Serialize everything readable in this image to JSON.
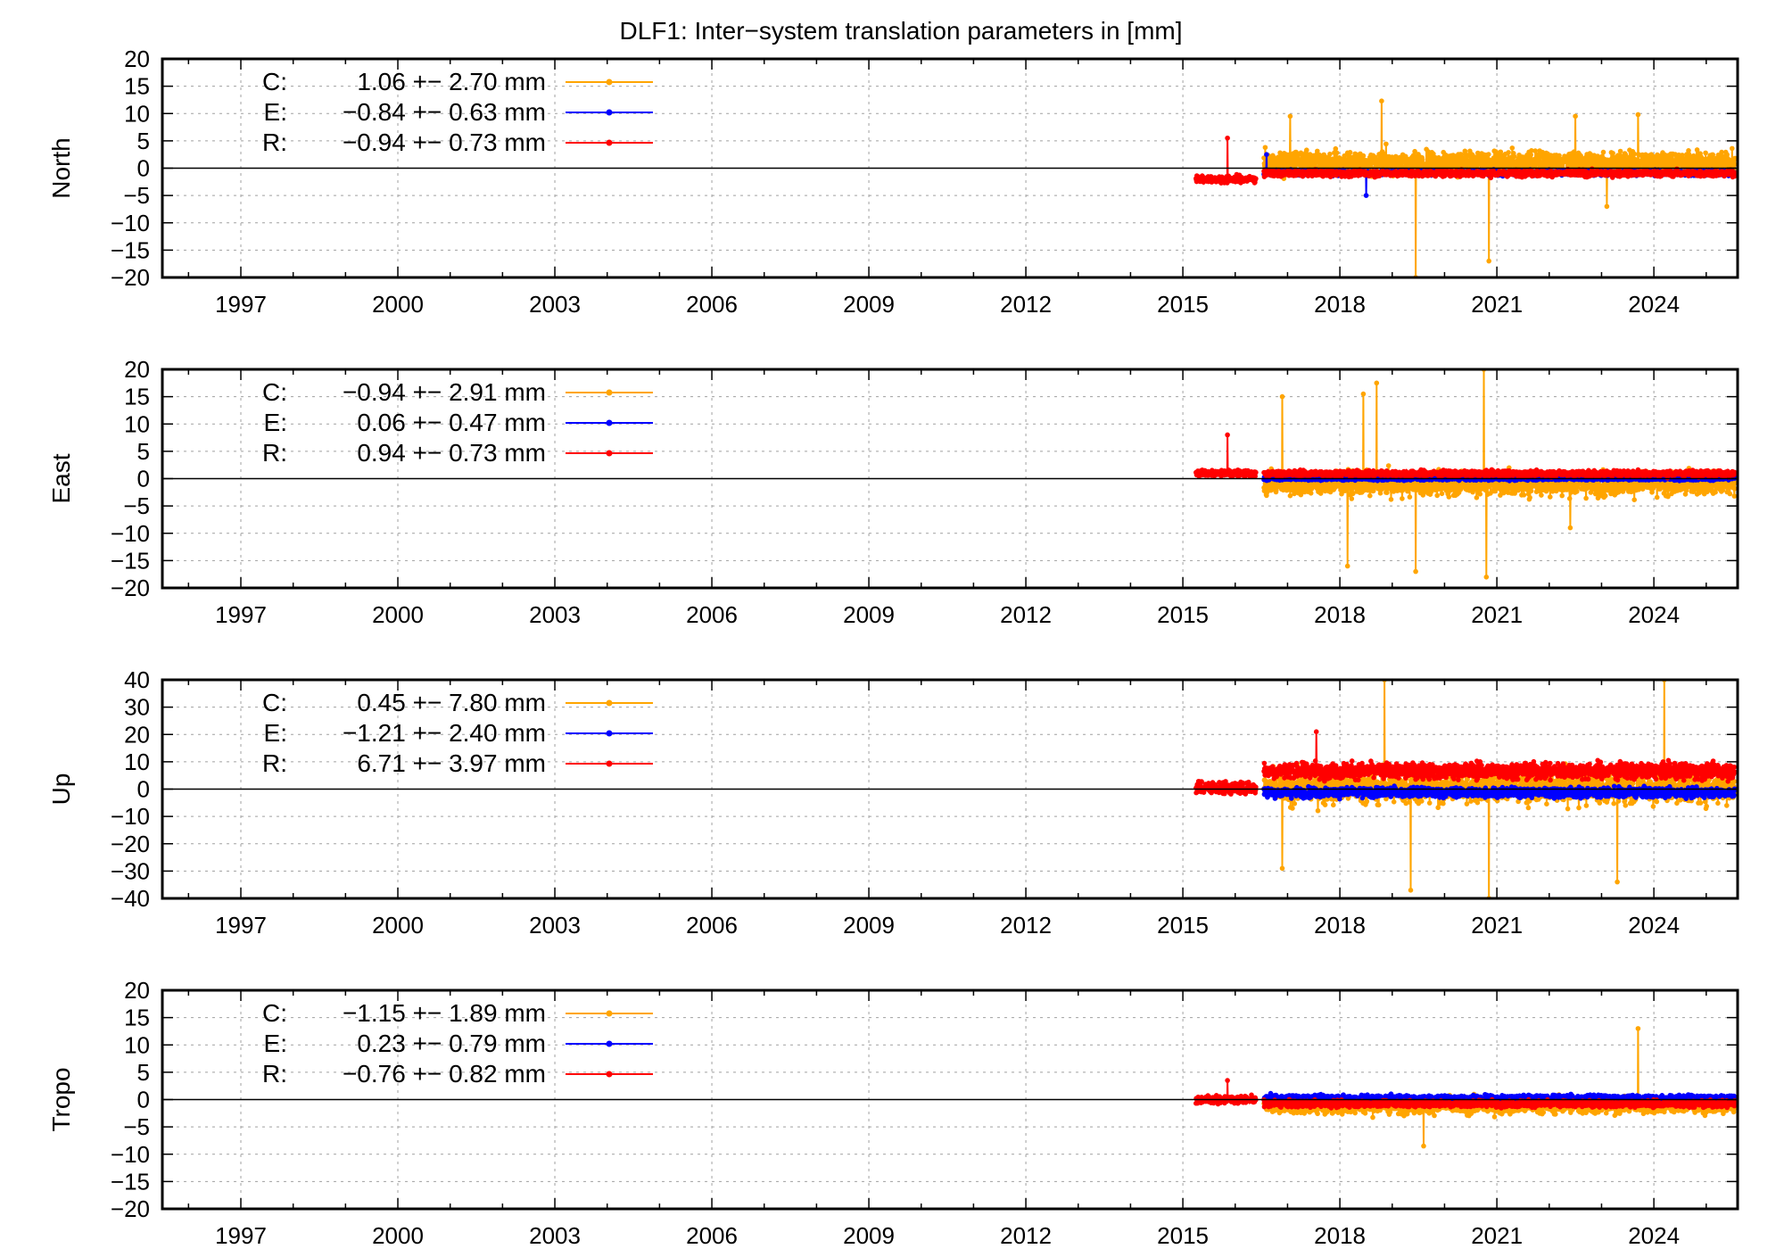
{
  "chart_data": {
    "type": "line",
    "title": "DLF1: Inter−system translation parameters in [mm]",
    "xlim": [
      1995.5,
      2025.6
    ],
    "xticks": [
      1997,
      2000,
      2003,
      2006,
      2009,
      2012,
      2015,
      2018,
      2021,
      2024
    ],
    "xtick_labels": [
      "1997",
      "2000",
      "2003",
      "2006",
      "2009",
      "2012",
      "2015",
      "2018",
      "2021",
      "2024"
    ],
    "grid": true,
    "series_colors": {
      "C": "#ffa500",
      "E": "#0000ff",
      "R": "#ff0000"
    },
    "panels": [
      {
        "ylabel": "North",
        "ylim": [
          -20,
          20
        ],
        "yticks": [
          -20,
          -15,
          -10,
          -5,
          0,
          5,
          10,
          15,
          20
        ],
        "ytick_labels": [
          "−20",
          "−15",
          "−10",
          "−5",
          "0",
          "5",
          "10",
          "15",
          "20"
        ],
        "legend": [
          {
            "sys": "C:",
            "stat": "1.06 +− 2.70 mm"
          },
          {
            "sys": "E:",
            "stat": "−0.84 +− 0.63 mm"
          },
          {
            "sys": "R:",
            "stat": "−0.94 +− 0.73 mm"
          }
        ],
        "series": [
          {
            "name": "C",
            "start": 2016.55,
            "end": 2025.55,
            "mean": 1.06,
            "std": 2.7,
            "spikes": [
              [
                2017.05,
                9.5
              ],
              [
                2018.8,
                12.3
              ],
              [
                2019.45,
                -21
              ],
              [
                2020.85,
                -17
              ],
              [
                2022.5,
                9.5
              ],
              [
                2023.1,
                -7
              ],
              [
                2023.7,
                9.8
              ]
            ]
          },
          {
            "name": "E",
            "start": 2016.55,
            "end": 2025.55,
            "mean": -0.84,
            "std": 0.63,
            "spikes": [
              [
                2016.6,
                2.5
              ],
              [
                2018.5,
                -5
              ]
            ]
          },
          {
            "name": "R",
            "start": 2015.25,
            "end": 2025.55,
            "mean": -0.94,
            "std": 0.73,
            "seg": [
              2015.25,
              2016.4,
              -2.0,
              0.9
            ],
            "spikes": [
              [
                2015.85,
                5.5
              ]
            ]
          }
        ]
      },
      {
        "ylabel": "East",
        "ylim": [
          -20,
          20
        ],
        "yticks": [
          -20,
          -15,
          -10,
          -5,
          0,
          5,
          10,
          15,
          20
        ],
        "ytick_labels": [
          "−20",
          "−15",
          "−10",
          "−5",
          "0",
          "5",
          "10",
          "15",
          "20"
        ],
        "legend": [
          {
            "sys": "C:",
            "stat": "−0.94 +− 2.91 mm"
          },
          {
            "sys": "E:",
            "stat": "0.06 +− 0.47 mm"
          },
          {
            "sys": "R:",
            "stat": "0.94 +− 0.73 mm"
          }
        ],
        "series": [
          {
            "name": "C",
            "start": 2016.55,
            "end": 2025.55,
            "mean": -0.94,
            "std": 2.91,
            "spikes": [
              [
                2016.9,
                15
              ],
              [
                2018.15,
                -16
              ],
              [
                2018.45,
                15.5
              ],
              [
                2018.7,
                17.5
              ],
              [
                2019.45,
                -17
              ],
              [
                2020.75,
                20
              ],
              [
                2020.8,
                -18
              ],
              [
                2022.4,
                -9
              ]
            ]
          },
          {
            "name": "E",
            "start": 2016.55,
            "end": 2025.55,
            "mean": 0.06,
            "std": 0.47,
            "spikes": []
          },
          {
            "name": "R",
            "start": 2015.25,
            "end": 2025.55,
            "mean": 0.94,
            "std": 0.73,
            "seg": [
              2015.25,
              2016.4,
              1.0,
              0.8
            ],
            "spikes": [
              [
                2015.85,
                8
              ]
            ]
          }
        ]
      },
      {
        "ylabel": "Up",
        "ylim": [
          -40,
          40
        ],
        "yticks": [
          -40,
          -30,
          -20,
          -10,
          0,
          10,
          20,
          30,
          40
        ],
        "ytick_labels": [
          "−40",
          "−30",
          "−20",
          "−10",
          "0",
          "10",
          "20",
          "30",
          "40"
        ],
        "legend": [
          {
            "sys": "C:",
            "stat": "0.45 +− 7.80 mm"
          },
          {
            "sys": "E:",
            "stat": "−1.21 +− 2.40 mm"
          },
          {
            "sys": "R:",
            "stat": "6.71 +− 3.97 mm"
          }
        ],
        "series": [
          {
            "name": "C",
            "start": 2016.55,
            "end": 2025.55,
            "mean": 0.45,
            "std": 7.8,
            "spikes": [
              [
                2016.9,
                -29
              ],
              [
                2018.85,
                40
              ],
              [
                2019.35,
                -37
              ],
              [
                2020.85,
                -40
              ],
              [
                2023.3,
                -34
              ],
              [
                2024.2,
                40
              ]
            ]
          },
          {
            "name": "E",
            "start": 2016.55,
            "end": 2025.55,
            "mean": -1.21,
            "std": 2.4,
            "spikes": []
          },
          {
            "name": "R",
            "start": 2015.25,
            "end": 2025.55,
            "mean": 6.71,
            "std": 3.97,
            "seg": [
              2015.25,
              2016.4,
              0.5,
              3.2
            ],
            "spikes": [
              [
                2017.55,
                21
              ]
            ]
          }
        ]
      },
      {
        "ylabel": "Tropo",
        "ylim": [
          -20,
          20
        ],
        "yticks": [
          -20,
          -15,
          -10,
          -5,
          0,
          5,
          10,
          15,
          20
        ],
        "ytick_labels": [
          "−20",
          "−15",
          "−10",
          "−5",
          "0",
          "5",
          "10",
          "15",
          "20"
        ],
        "legend": [
          {
            "sys": "C:",
            "stat": "−1.15 +− 1.89 mm"
          },
          {
            "sys": "E:",
            "stat": "0.23 +− 0.79 mm"
          },
          {
            "sys": "R:",
            "stat": "−0.76 +− 0.82 mm"
          }
        ],
        "series": [
          {
            "name": "C",
            "start": 2016.55,
            "end": 2025.55,
            "mean": -1.15,
            "std": 1.89,
            "spikes": [
              [
                2023.7,
                13
              ],
              [
                2019.6,
                -8.5
              ]
            ]
          },
          {
            "name": "E",
            "start": 2016.55,
            "end": 2025.55,
            "mean": 0.23,
            "std": 0.79,
            "spikes": []
          },
          {
            "name": "R",
            "start": 2015.25,
            "end": 2025.55,
            "mean": -0.76,
            "std": 0.82,
            "seg": [
              2015.25,
              2016.4,
              0.0,
              0.9
            ],
            "spikes": [
              [
                2015.85,
                3.5
              ]
            ]
          }
        ]
      }
    ]
  }
}
